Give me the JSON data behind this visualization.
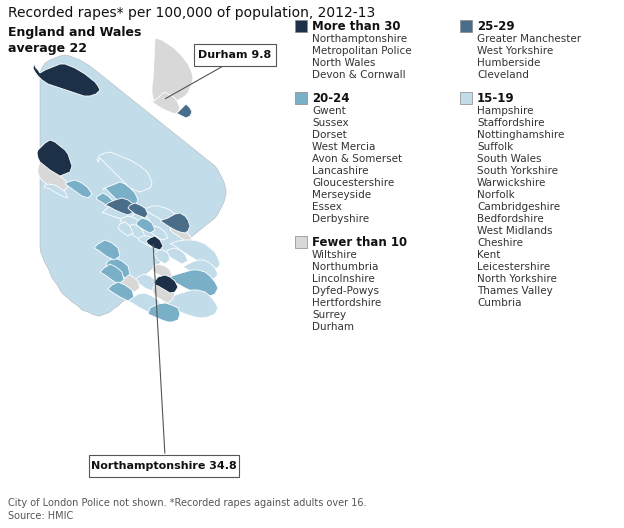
{
  "title": "Recorded rapes* per 100,000 of population, 2012-13",
  "subtitle": "England and Wales\naverage 22",
  "footnote": "City of London Police not shown. *Recorded rapes against adults over 16.\nSource: HMIC",
  "callout1_label": "Durham 9.8",
  "callout2_label": "Northamptonshire 34.8",
  "bg_color": "#ffffff",
  "color_more30": "#1c3148",
  "color_25_29": "#4a6e8a",
  "color_20_24": "#7aafc8",
  "color_15_19": "#c2dcea",
  "color_fewer10": "#d8d8d8",
  "legend": [
    {
      "range": "More than 30",
      "color_key": "color_more30",
      "items": [
        "Northamptonshire",
        "Metropolitan Police",
        "North Wales",
        "Devon & Cornwall"
      ]
    },
    {
      "range": "25-29",
      "color_key": "color_25_29",
      "items": [
        "Greater Manchester",
        "West Yorkshire",
        "Humberside",
        "Cleveland"
      ]
    },
    {
      "range": "20-24",
      "color_key": "color_20_24",
      "items": [
        "Gwent",
        "Sussex",
        "Dorset",
        "West Mercia",
        "Avon & Somerset",
        "Lancashire",
        "Gloucestershire",
        "Merseyside",
        "Essex",
        "Derbyshire"
      ]
    },
    {
      "range": "15-19",
      "color_key": "color_15_19",
      "items": [
        "Hampshire",
        "Staffordshire",
        "Nottinghamshire",
        "Suffolk",
        "South Wales",
        "South Yorkshire",
        "Warwickshire",
        "Norfolk",
        "Cambridgeshire",
        "Bedfordshire",
        "West Midlands",
        "Cheshire",
        "Kent",
        "Leicestershire",
        "North Yorkshire",
        "Thames Valley",
        "Cumbria"
      ]
    },
    {
      "range": "Fewer than 10",
      "color_key": "color_fewer10",
      "items": [
        "Wiltshire",
        "Northumbria",
        "Lincolnshire",
        "Dyfed-Powys",
        "Hertfordshire",
        "Surrey",
        "Durham"
      ]
    }
  ],
  "title_fontsize": 10,
  "body_fontsize": 7.5,
  "bold_fontsize": 8.5,
  "subtitle_fontsize": 9
}
